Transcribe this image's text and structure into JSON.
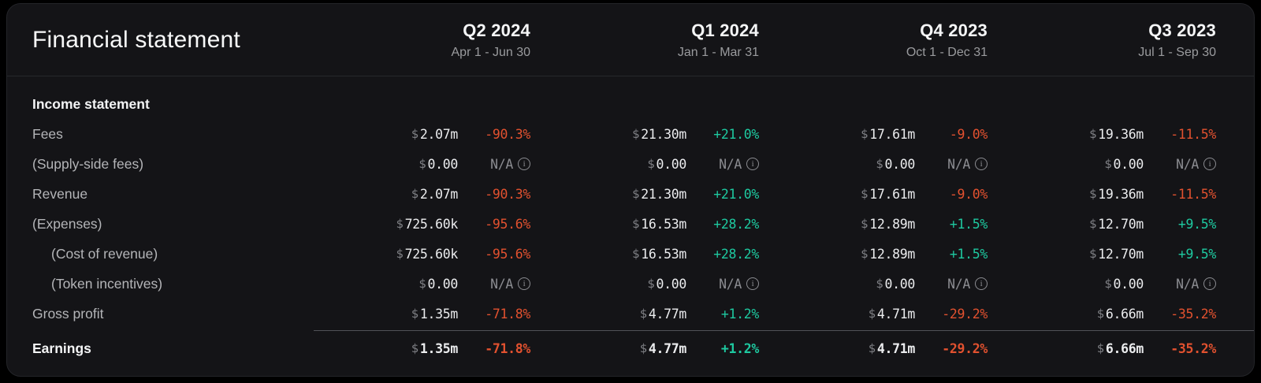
{
  "colors": {
    "positive": "#1ec9a0",
    "negative": "#e2512f",
    "card_bg": "#141417",
    "page_bg": "#000000"
  },
  "card": {
    "title": "Financial statement",
    "info_icon_glyph": "i",
    "columns": [
      {
        "quarter": "Q2 2024",
        "range": "Apr 1 - Jun 30"
      },
      {
        "quarter": "Q1 2024",
        "range": "Jan 1 - Mar 31"
      },
      {
        "quarter": "Q4 2023",
        "range": "Oct 1 - Dec 31"
      },
      {
        "quarter": "Q3 2023",
        "range": "Jul 1 - Sep 30"
      }
    ],
    "rows": [
      {
        "label": "Income statement",
        "type": "section"
      },
      {
        "label": "Fees",
        "cells": [
          {
            "cur": "$",
            "val": "2.07m",
            "chg": "-90.3%",
            "dir": "neg"
          },
          {
            "cur": "$",
            "val": "21.30m",
            "chg": "+21.0%",
            "dir": "pos"
          },
          {
            "cur": "$",
            "val": "17.61m",
            "chg": "-9.0%",
            "dir": "neg"
          },
          {
            "cur": "$",
            "val": "19.36m",
            "chg": "-11.5%",
            "dir": "neg"
          }
        ]
      },
      {
        "label": "(Supply-side fees)",
        "cells": [
          {
            "cur": "$",
            "val": "0.00",
            "chg": "N/A",
            "dir": "na",
            "info": true
          },
          {
            "cur": "$",
            "val": "0.00",
            "chg": "N/A",
            "dir": "na",
            "info": true
          },
          {
            "cur": "$",
            "val": "0.00",
            "chg": "N/A",
            "dir": "na",
            "info": true
          },
          {
            "cur": "$",
            "val": "0.00",
            "chg": "N/A",
            "dir": "na",
            "info": true
          }
        ]
      },
      {
        "label": "Revenue",
        "cells": [
          {
            "cur": "$",
            "val": "2.07m",
            "chg": "-90.3%",
            "dir": "neg"
          },
          {
            "cur": "$",
            "val": "21.30m",
            "chg": "+21.0%",
            "dir": "pos"
          },
          {
            "cur": "$",
            "val": "17.61m",
            "chg": "-9.0%",
            "dir": "neg"
          },
          {
            "cur": "$",
            "val": "19.36m",
            "chg": "-11.5%",
            "dir": "neg"
          }
        ]
      },
      {
        "label": "(Expenses)",
        "cells": [
          {
            "cur": "$",
            "val": "725.60k",
            "chg": "-95.6%",
            "dir": "neg"
          },
          {
            "cur": "$",
            "val": "16.53m",
            "chg": "+28.2%",
            "dir": "pos"
          },
          {
            "cur": "$",
            "val": "12.89m",
            "chg": "+1.5%",
            "dir": "pos"
          },
          {
            "cur": "$",
            "val": "12.70m",
            "chg": "+9.5%",
            "dir": "pos"
          }
        ]
      },
      {
        "label": "(Cost of revenue)",
        "indent": true,
        "cells": [
          {
            "cur": "$",
            "val": "725.60k",
            "chg": "-95.6%",
            "dir": "neg"
          },
          {
            "cur": "$",
            "val": "16.53m",
            "chg": "+28.2%",
            "dir": "pos"
          },
          {
            "cur": "$",
            "val": "12.89m",
            "chg": "+1.5%",
            "dir": "pos"
          },
          {
            "cur": "$",
            "val": "12.70m",
            "chg": "+9.5%",
            "dir": "pos"
          }
        ]
      },
      {
        "label": "(Token incentives)",
        "indent": true,
        "cells": [
          {
            "cur": "$",
            "val": "0.00",
            "chg": "N/A",
            "dir": "na",
            "info": true
          },
          {
            "cur": "$",
            "val": "0.00",
            "chg": "N/A",
            "dir": "na",
            "info": true
          },
          {
            "cur": "$",
            "val": "0.00",
            "chg": "N/A",
            "dir": "na",
            "info": true
          },
          {
            "cur": "$",
            "val": "0.00",
            "chg": "N/A",
            "dir": "na",
            "info": true
          }
        ]
      },
      {
        "label": "Gross profit",
        "cells": [
          {
            "cur": "$",
            "val": "1.35m",
            "chg": "-71.8%",
            "dir": "neg"
          },
          {
            "cur": "$",
            "val": "4.77m",
            "chg": "+1.2%",
            "dir": "pos"
          },
          {
            "cur": "$",
            "val": "4.71m",
            "chg": "-29.2%",
            "dir": "neg"
          },
          {
            "cur": "$",
            "val": "6.66m",
            "chg": "-35.2%",
            "dir": "neg"
          }
        ]
      },
      {
        "label": "Earnings",
        "bold": true,
        "separator_above": true,
        "cells": [
          {
            "cur": "$",
            "val": "1.35m",
            "chg": "-71.8%",
            "dir": "neg"
          },
          {
            "cur": "$",
            "val": "4.77m",
            "chg": "+1.2%",
            "dir": "pos"
          },
          {
            "cur": "$",
            "val": "4.71m",
            "chg": "-29.2%",
            "dir": "neg"
          },
          {
            "cur": "$",
            "val": "6.66m",
            "chg": "-35.2%",
            "dir": "neg"
          }
        ]
      }
    ]
  }
}
